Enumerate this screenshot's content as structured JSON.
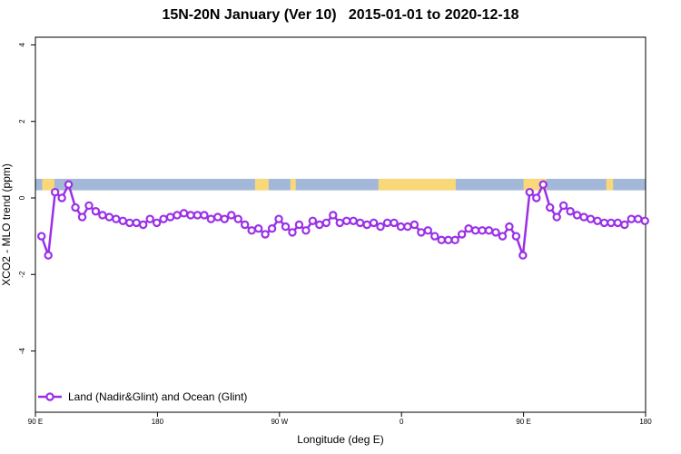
{
  "chart_data": {
    "type": "line",
    "title": "15N-20N January (Ver 10)   2015-01-01 to 2020-12-18",
    "xlabel": "Longitude (deg E)",
    "ylabel": "XCO2 - MLO trend (ppm)",
    "xlim": [
      90,
      540
    ],
    "ylim": [
      -5.6,
      4.2
    ],
    "x_ticks": [
      {
        "value": 90,
        "label": "90 E"
      },
      {
        "value": 180,
        "label": "180"
      },
      {
        "value": 270,
        "label": "90 W"
      },
      {
        "value": 360,
        "label": "0"
      },
      {
        "value": 450,
        "label": "90 E"
      },
      {
        "value": 540,
        "label": "180"
      }
    ],
    "y_ticks": [
      {
        "value": 4,
        "label": "4"
      },
      {
        "value": 2,
        "label": "2"
      },
      {
        "value": 0,
        "label": "0"
      },
      {
        "value": -2,
        "label": "-2"
      },
      {
        "value": -4,
        "label": "-4"
      }
    ],
    "surface_band": {
      "y_range": [
        0.2,
        0.5
      ],
      "ocean_color": "#a3b8d8",
      "land_color": "#f8d878",
      "land_x_ranges": [
        [
          95,
          104
        ],
        [
          252,
          262
        ],
        [
          278,
          282
        ],
        [
          343,
          400
        ],
        [
          450,
          467
        ],
        [
          511,
          516
        ]
      ]
    },
    "series": [
      {
        "name": "Land (Nadir&Glint) and Ocean (Glint)",
        "color": "#9b30e6",
        "x": [
          94.5,
          99.5,
          104.5,
          109.5,
          114.5,
          119.5,
          124.5,
          129.5,
          134.5,
          139.5,
          144.5,
          149.5,
          154.5,
          159.5,
          164.5,
          169.5,
          174.5,
          179.5,
          184.5,
          189.5,
          194.5,
          199.5,
          204.5,
          209.5,
          214.5,
          219.5,
          224.5,
          229.5,
          234.5,
          239.5,
          244.5,
          249.5,
          254.5,
          259.5,
          264.5,
          269.5,
          274.5,
          279.5,
          284.5,
          289.5,
          294.5,
          299.5,
          304.5,
          309.5,
          314.5,
          319.5,
          324.5,
          329.5,
          334.5,
          339.5,
          344.5,
          349.5,
          354.5,
          359.5,
          364.5,
          369.5,
          374.5,
          379.5,
          384.5,
          389.5,
          394.5,
          399.5,
          404.5,
          409.5,
          414.5,
          419.5,
          424.5,
          429.5,
          434.5,
          439.5,
          444.5,
          449.5,
          454.5,
          459.5,
          464.5,
          469.5,
          474.5,
          479.5,
          484.5,
          489.5,
          494.5,
          499.5,
          504.5,
          509.5,
          514.5,
          519.5,
          524.5,
          529.5,
          534.5,
          539.5
        ],
        "values": [
          -1.0,
          -1.5,
          0.15,
          0.0,
          0.35,
          -0.25,
          -0.5,
          -0.2,
          -0.35,
          -0.45,
          -0.5,
          -0.55,
          -0.6,
          -0.65,
          -0.65,
          -0.7,
          -0.55,
          -0.65,
          -0.55,
          -0.5,
          -0.45,
          -0.4,
          -0.45,
          -0.45,
          -0.45,
          -0.55,
          -0.5,
          -0.55,
          -0.45,
          -0.55,
          -0.7,
          -0.85,
          -0.8,
          -0.95,
          -0.8,
          -0.55,
          -0.75,
          -0.9,
          -0.7,
          -0.85,
          -0.6,
          -0.7,
          -0.65,
          -0.45,
          -0.65,
          -0.6,
          -0.6,
          -0.65,
          -0.7,
          -0.65,
          -0.75,
          -0.65,
          -0.65,
          -0.75,
          -0.75,
          -0.7,
          -0.9,
          -0.85,
          -1.0,
          -1.1,
          -1.1,
          -1.1,
          -0.95,
          -0.8,
          -0.85,
          -0.85,
          -0.85,
          -0.9,
          -1.0,
          -0.75,
          -1.0,
          -1.5,
          0.15,
          0.0,
          0.35,
          -0.25,
          -0.5,
          -0.2,
          -0.35,
          -0.45,
          -0.5,
          -0.55,
          -0.6,
          -0.65,
          -0.65,
          -0.65,
          -0.7,
          -0.55,
          -0.55,
          -0.6
        ]
      }
    ],
    "legend": {
      "position": "bottom-left",
      "entries": [
        "Land (Nadir&Glint) and Ocean (Glint)"
      ]
    }
  }
}
